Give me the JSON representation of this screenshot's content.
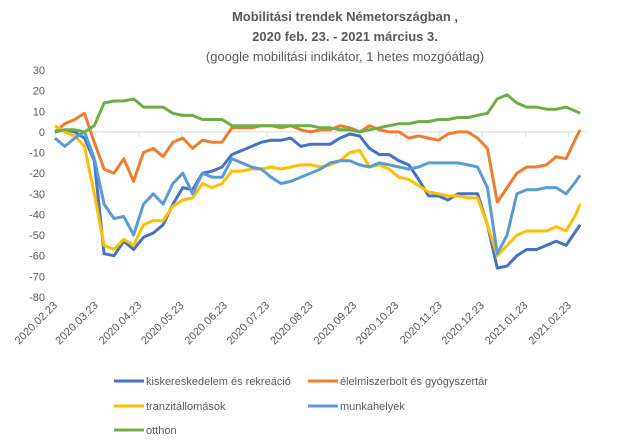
{
  "chart_data": {
    "type": "line",
    "title_lines": [
      "Mobilitási trendek Németországban ,",
      "2020  feb. 23.  - 2021  március 3."
    ],
    "subtitle": "(google mobilitási indikátor, 1 hetes mozgóátlag)",
    "xlabel": "",
    "ylabel": "",
    "ylim": [
      -80,
      30
    ],
    "yticks": [
      "30",
      "20",
      "10",
      "0",
      "-10",
      "-20",
      "-30",
      "-40",
      "-50",
      "-60",
      "-70",
      "-80"
    ],
    "xtick_labels": [
      "2020.02.23",
      "2020.03.23",
      "2020.04.23",
      "2020.05.23",
      "2020.06.23",
      "2020.07.23",
      "2020.08.23",
      "2020.09.23",
      "2020.10.23",
      "2020.11.23",
      "2020.12.23",
      "2021.01.23",
      "2021.02.23"
    ],
    "grid": false,
    "legend_position": "bottom",
    "x": [
      "2020-02-23",
      "2020-03-01",
      "2020-03-08",
      "2020-03-15",
      "2020-03-22",
      "2020-03-29",
      "2020-04-05",
      "2020-04-12",
      "2020-04-19",
      "2020-04-26",
      "2020-05-03",
      "2020-05-10",
      "2020-05-17",
      "2020-05-24",
      "2020-05-31",
      "2020-06-07",
      "2020-06-14",
      "2020-06-21",
      "2020-06-28",
      "2020-07-05",
      "2020-07-12",
      "2020-07-19",
      "2020-07-26",
      "2020-08-02",
      "2020-08-09",
      "2020-08-16",
      "2020-08-23",
      "2020-08-30",
      "2020-09-06",
      "2020-09-13",
      "2020-09-20",
      "2020-09-27",
      "2020-10-04",
      "2020-10-11",
      "2020-10-18",
      "2020-10-25",
      "2020-11-01",
      "2020-11-08",
      "2020-11-15",
      "2020-11-22",
      "2020-11-29",
      "2020-12-06",
      "2020-12-13",
      "2020-12-20",
      "2020-12-27",
      "2021-01-03",
      "2021-01-10",
      "2021-01-17",
      "2021-01-24",
      "2021-01-31",
      "2021-02-07",
      "2021-02-14",
      "2021-02-21",
      "2021-02-28",
      "2021-03-03"
    ],
    "series": [
      {
        "name": "kiskereskedelem és rekreáció",
        "color": "#4472C4",
        "values": [
          0,
          1,
          0,
          -3,
          -14,
          -59,
          -60,
          -53,
          -57,
          -51,
          -49,
          -45,
          -35,
          -27,
          -28,
          -20,
          -19,
          -17,
          -11,
          -9,
          -7,
          -5,
          -4,
          -4,
          -3,
          -7,
          -6,
          -6,
          -6,
          -3,
          -1,
          -2,
          -8,
          -11,
          -11,
          -14,
          -16,
          -23,
          -31,
          -31,
          -33,
          -30,
          -30,
          -30,
          -45,
          -66,
          -65,
          -60,
          -57,
          -57,
          -55,
          -53,
          -55,
          -48,
          -45
        ]
      },
      {
        "name": "élelmiszerbolt és gyógyszertár",
        "color": "#ED7D31",
        "values": [
          0,
          4,
          6,
          9,
          -5,
          -18,
          -20,
          -13,
          -24,
          -10,
          -8,
          -12,
          -5,
          -3,
          -8,
          -4,
          -5,
          -5,
          2,
          2,
          2,
          3,
          3,
          2,
          3,
          1,
          0,
          1,
          1,
          3,
          2,
          0,
          3,
          1,
          0,
          0,
          -3,
          -2,
          -3,
          -4,
          -1,
          0,
          0,
          -3,
          -8,
          -34,
          -27,
          -20,
          -17,
          -17,
          -16,
          -12,
          -13,
          -3,
          1
        ]
      },
      {
        "name": "tranzitállomások",
        "color": "#FFC000",
        "values": [
          3,
          0,
          -2,
          -7,
          -30,
          -55,
          -57,
          -52,
          -55,
          -45,
          -43,
          -43,
          -36,
          -33,
          -32,
          -25,
          -27,
          -25,
          -19,
          -19,
          -18,
          -18,
          -17,
          -18,
          -17,
          -16,
          -16,
          -17,
          -16,
          -14,
          -10,
          -9,
          -17,
          -16,
          -18,
          -22,
          -23,
          -26,
          -29,
          -30,
          -31,
          -31,
          -32,
          -32,
          -45,
          -60,
          -55,
          -50,
          -48,
          -48,
          -48,
          -46,
          -48,
          -40,
          -35
        ]
      },
      {
        "name": "munkahelyek",
        "color": "#5B9BD5",
        "values": [
          -3,
          -7,
          -3,
          0,
          -13,
          -35,
          -42,
          -41,
          -50,
          -35,
          -30,
          -35,
          -25,
          -20,
          -30,
          -20,
          -22,
          -22,
          -13,
          -15,
          -17,
          -18,
          -22,
          -25,
          -24,
          -22,
          -20,
          -18,
          -15,
          -14,
          -14,
          -16,
          -17,
          -15,
          -16,
          -17,
          -18,
          -17,
          -15,
          -15,
          -15,
          -15,
          -16,
          -17,
          -27,
          -59,
          -50,
          -30,
          -28,
          -28,
          -27,
          -27,
          -30,
          -24,
          -21
        ]
      },
      {
        "name": "otthon",
        "color": "#70AD47",
        "values": [
          0,
          1,
          1,
          0,
          3,
          14,
          15,
          15,
          16,
          12,
          12,
          12,
          9,
          8,
          8,
          6,
          6,
          6,
          3,
          3,
          3,
          3,
          3,
          3,
          3,
          3,
          3,
          2,
          2,
          1,
          1,
          0,
          1,
          2,
          3,
          4,
          4,
          5,
          5,
          6,
          6,
          7,
          7,
          8,
          9,
          16,
          18,
          14,
          12,
          12,
          11,
          11,
          12,
          10,
          9
        ]
      }
    ]
  }
}
